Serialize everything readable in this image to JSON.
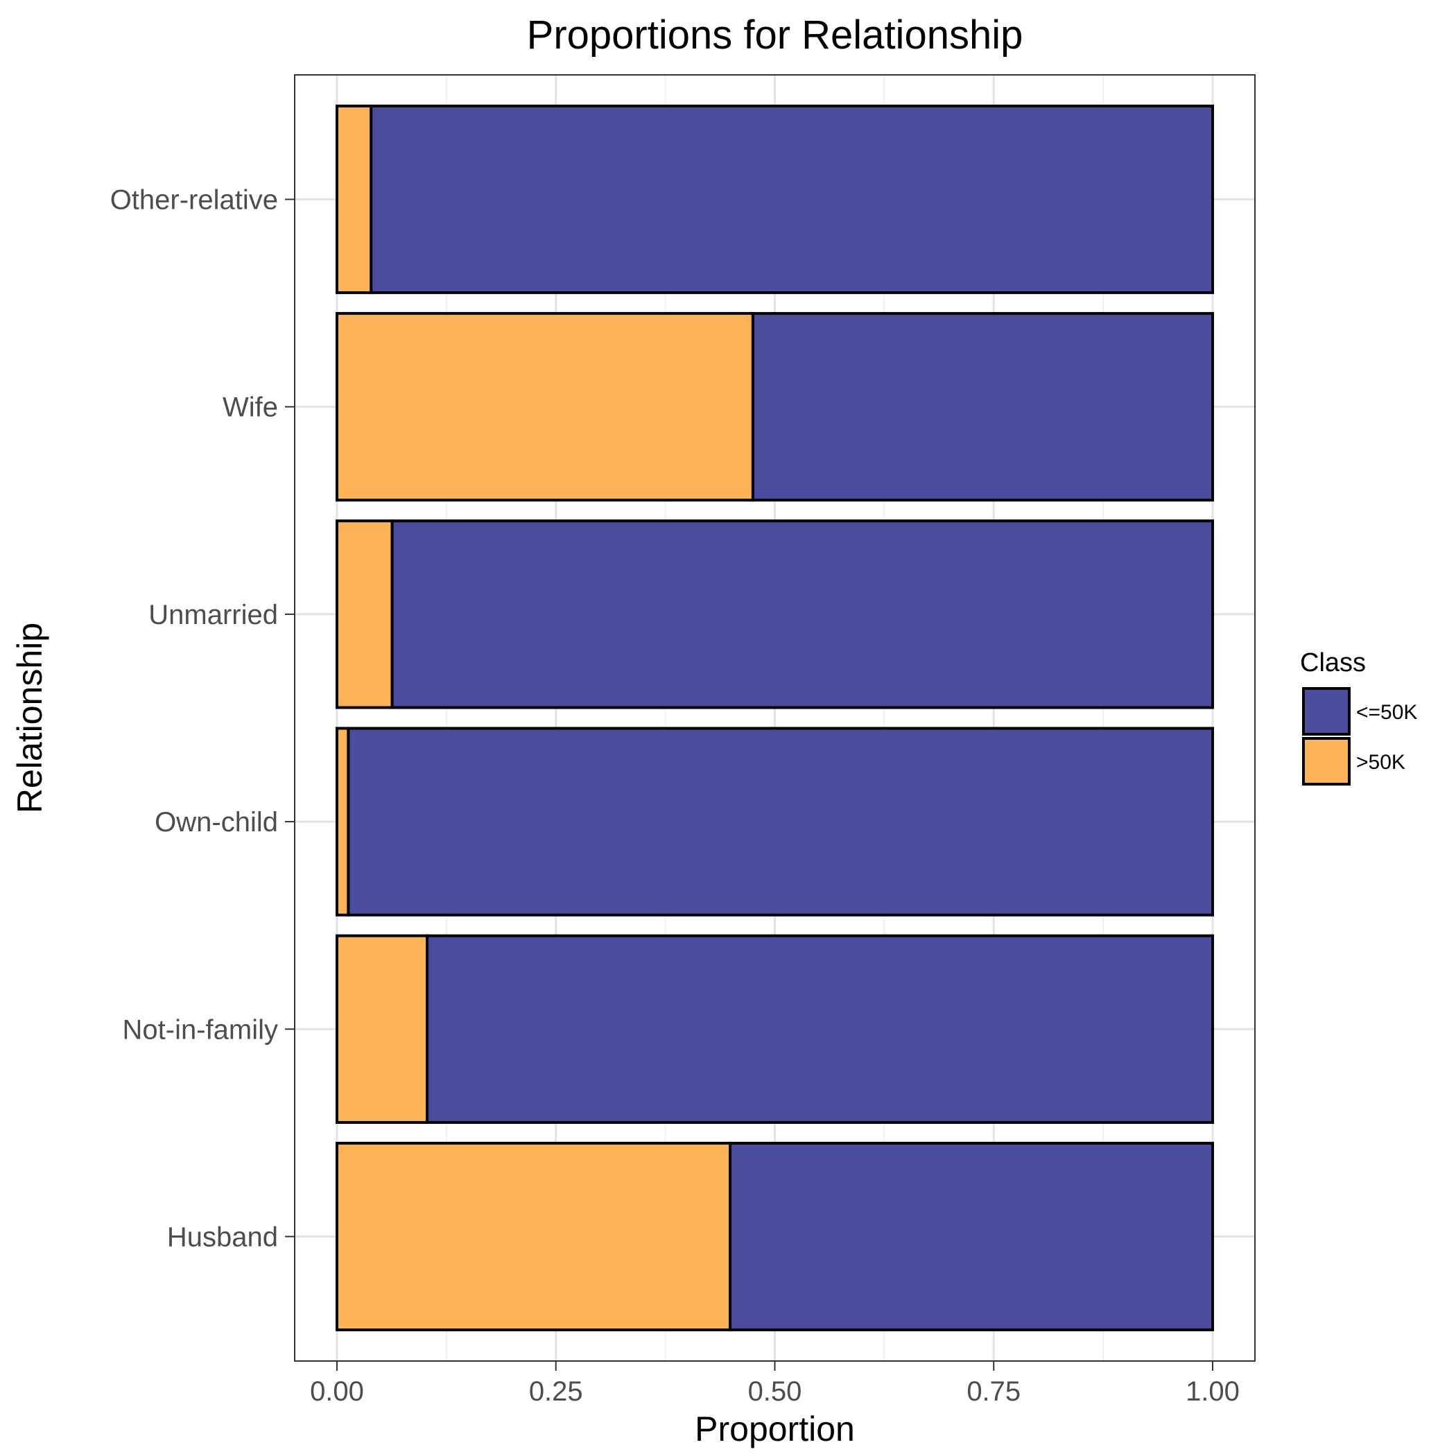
{
  "chart_data": {
    "type": "bar",
    "orientation": "horizontal",
    "stacked": true,
    "title": "Proportions for Relationship",
    "xlabel": "Proportion",
    "ylabel": "Relationship",
    "xlim": [
      0,
      1
    ],
    "x_ticks": [
      "0.00",
      "0.25",
      "0.50",
      "0.75",
      "1.00"
    ],
    "categories": [
      "Husband",
      "Not-in-family",
      "Own-child",
      "Unmarried",
      "Wife",
      "Other-relative"
    ],
    "series": [
      {
        "name": ">50K",
        "color": "#FCB356",
        "values": [
          0.449,
          0.103,
          0.013,
          0.063,
          0.475,
          0.039
        ]
      },
      {
        "name": "<=50K",
        "color": "#4B4C9E",
        "values": [
          0.551,
          0.897,
          0.987,
          0.937,
          0.525,
          0.961
        ]
      }
    ],
    "legend": {
      "title": "Class",
      "placement": "right",
      "entries": [
        "<=50K",
        ">50K"
      ]
    },
    "grid": true
  }
}
